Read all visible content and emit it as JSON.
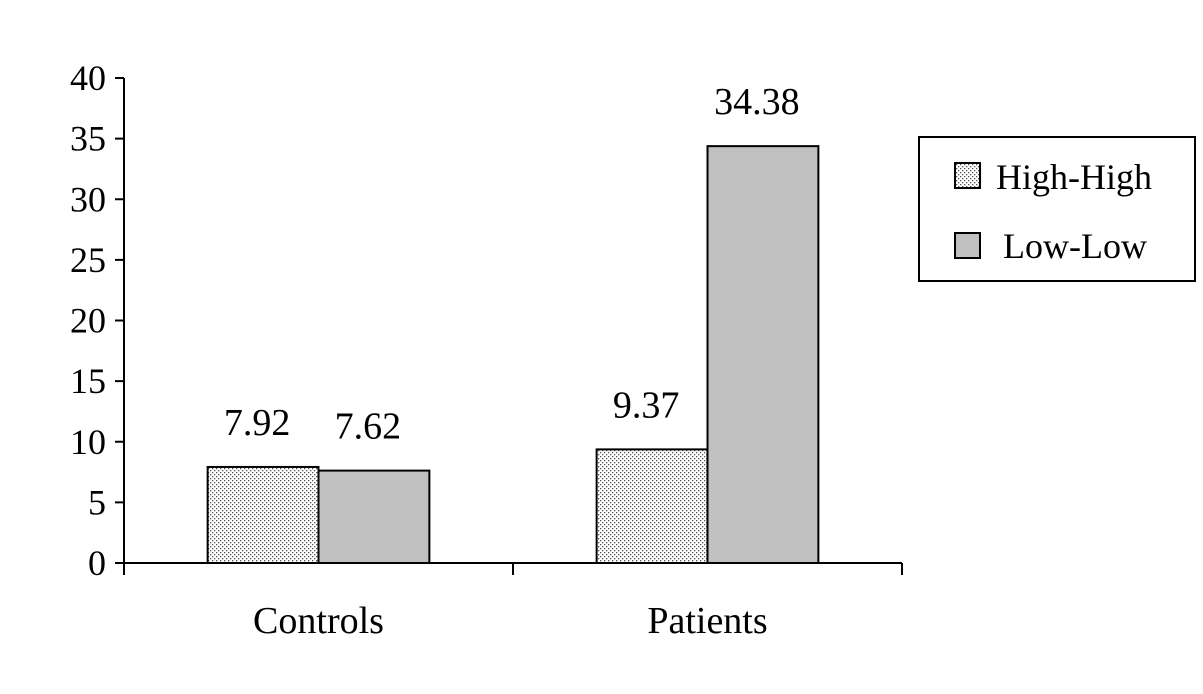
{
  "chart_data": {
    "type": "bar",
    "title": "",
    "xlabel": "",
    "ylabel": "",
    "categories": [
      "Controls",
      "Patients"
    ],
    "series": [
      {
        "name": "High-High",
        "values": [
          7.92,
          9.37
        ],
        "labels": [
          "7.92",
          "9.37"
        ],
        "fill": "dotted",
        "color": "#e8e8e8"
      },
      {
        "name": "Low-Low",
        "values": [
          7.62,
          34.38
        ],
        "labels": [
          "7.62",
          "34.38"
        ],
        "fill": "solid",
        "color": "#c0c0c0"
      }
    ],
    "ylim": [
      0,
      40
    ],
    "yticks": [
      "0",
      "5",
      "10",
      "15",
      "20",
      "25",
      "30",
      "35",
      "40"
    ],
    "grid": false,
    "legend_position": "right"
  }
}
